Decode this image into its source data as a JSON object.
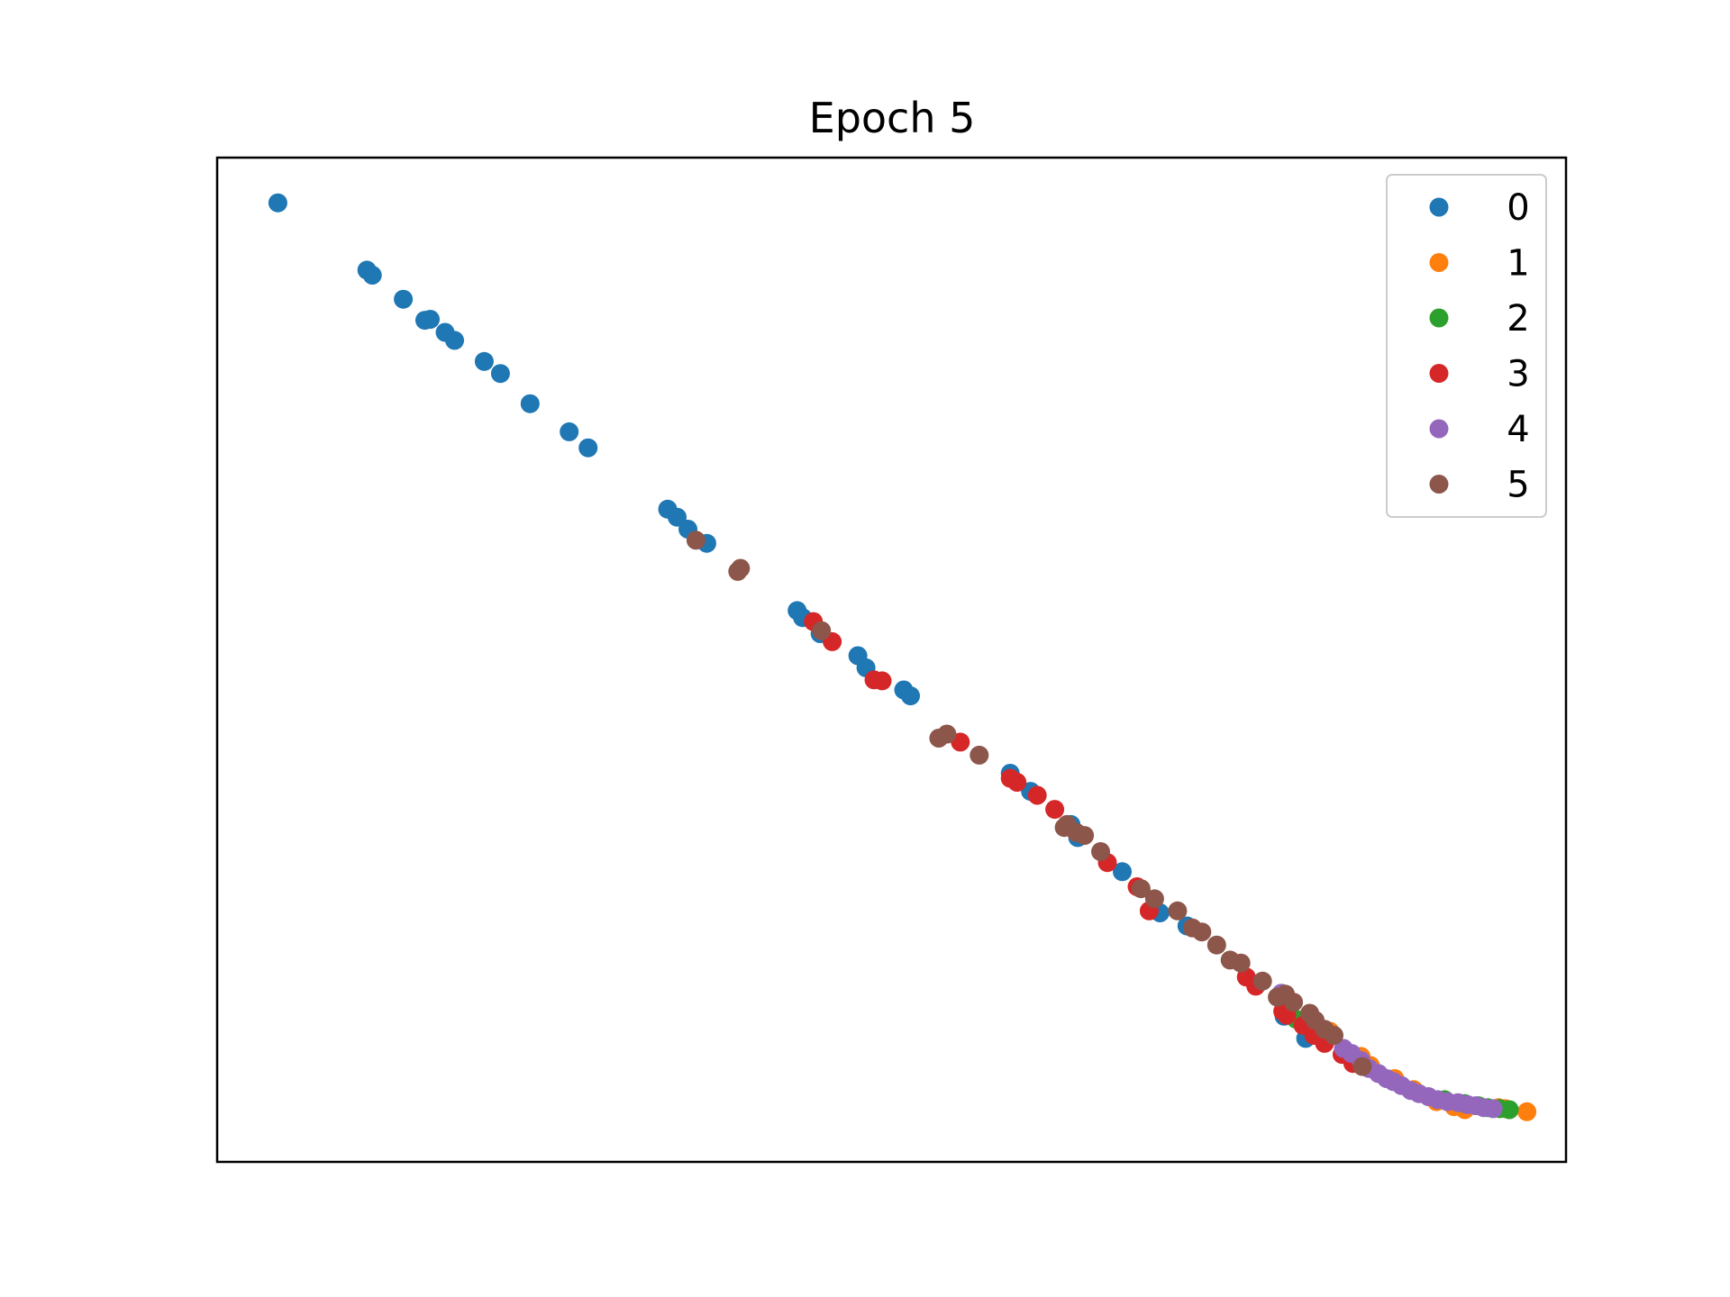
{
  "chart_data": {
    "type": "scatter",
    "title": "Epoch 5",
    "xlabel": "",
    "ylabel": "",
    "xlim": [
      0,
      100
    ],
    "ylim": [
      0,
      100
    ],
    "x_ticks_visible": false,
    "y_ticks_visible": false,
    "grid": false,
    "legend_position": "top-right",
    "series": [
      {
        "name": "0",
        "color": "#1f77b4",
        "points": [
          [
            4.5,
            95.5
          ],
          [
            11.1,
            88.8
          ],
          [
            11.5,
            88.3
          ],
          [
            13.8,
            85.9
          ],
          [
            15.4,
            83.8
          ],
          [
            15.8,
            83.9
          ],
          [
            16.9,
            82.6
          ],
          [
            17.6,
            81.8
          ],
          [
            19.8,
            79.7
          ],
          [
            21.0,
            78.5
          ],
          [
            23.2,
            75.5
          ],
          [
            26.1,
            72.7
          ],
          [
            27.5,
            71.1
          ],
          [
            33.4,
            65.0
          ],
          [
            34.1,
            64.2
          ],
          [
            34.9,
            63.0
          ],
          [
            36.3,
            61.6
          ],
          [
            43.0,
            54.9
          ],
          [
            43.4,
            54.2
          ],
          [
            44.7,
            52.6
          ],
          [
            47.5,
            50.4
          ],
          [
            48.1,
            49.2
          ],
          [
            50.9,
            47.0
          ],
          [
            51.4,
            46.4
          ],
          [
            58.8,
            38.7
          ],
          [
            60.3,
            36.9
          ],
          [
            63.3,
            33.6
          ],
          [
            63.8,
            32.3
          ],
          [
            67.1,
            28.9
          ],
          [
            69.9,
            24.8
          ],
          [
            71.9,
            23.5
          ],
          [
            79.1,
            14.5
          ],
          [
            80.7,
            12.3
          ]
        ]
      },
      {
        "name": "1",
        "color": "#ff7f0e",
        "points": [
          [
            82.5,
            13.0
          ],
          [
            84.8,
            10.5
          ],
          [
            85.5,
            9.6
          ],
          [
            87.3,
            8.3
          ],
          [
            88.7,
            7.2
          ],
          [
            90.4,
            6.0
          ],
          [
            91.7,
            5.5
          ],
          [
            92.5,
            5.2
          ],
          [
            95.0,
            5.4
          ],
          [
            95.5,
            5.3
          ],
          [
            97.1,
            5.0
          ]
        ]
      },
      {
        "name": "2",
        "color": "#2ca02c",
        "points": [
          [
            80.0,
            14.2
          ],
          [
            81.0,
            13.7
          ],
          [
            82.0,
            12.9
          ],
          [
            91.0,
            6.2
          ],
          [
            92.5,
            5.8
          ],
          [
            93.5,
            5.6
          ],
          [
            94.2,
            5.4
          ],
          [
            95.1,
            5.3
          ],
          [
            95.8,
            5.2
          ]
        ]
      },
      {
        "name": "3",
        "color": "#d62728",
        "points": [
          [
            44.2,
            53.8
          ],
          [
            45.6,
            51.8
          ],
          [
            48.7,
            48.0
          ],
          [
            49.3,
            47.9
          ],
          [
            55.1,
            41.8
          ],
          [
            58.8,
            38.2
          ],
          [
            59.3,
            37.8
          ],
          [
            60.8,
            36.5
          ],
          [
            62.1,
            35.1
          ],
          [
            66.0,
            29.8
          ],
          [
            68.2,
            27.4
          ],
          [
            69.1,
            25.0
          ],
          [
            76.3,
            18.4
          ],
          [
            77.0,
            17.5
          ],
          [
            79.0,
            15.0
          ],
          [
            79.3,
            14.6
          ],
          [
            80.5,
            13.6
          ],
          [
            81.3,
            12.6
          ],
          [
            82.1,
            11.8
          ],
          [
            83.4,
            10.7
          ],
          [
            84.2,
            9.8
          ]
        ]
      },
      {
        "name": "4",
        "color": "#9467bd",
        "points": [
          [
            78.9,
            16.8
          ],
          [
            83.5,
            11.3
          ],
          [
            84.1,
            10.8
          ],
          [
            84.8,
            10.1
          ],
          [
            85.4,
            9.3
          ],
          [
            86.1,
            8.8
          ],
          [
            86.7,
            8.3
          ],
          [
            87.2,
            8.0
          ],
          [
            87.8,
            7.6
          ],
          [
            88.5,
            7.1
          ],
          [
            89.1,
            6.8
          ],
          [
            89.8,
            6.5
          ],
          [
            90.5,
            6.2
          ],
          [
            91.2,
            6.0
          ],
          [
            92.0,
            5.9
          ],
          [
            92.7,
            5.7
          ],
          [
            93.3,
            5.6
          ],
          [
            93.9,
            5.4
          ],
          [
            94.6,
            5.3
          ]
        ]
      },
      {
        "name": "5",
        "color": "#8c564b",
        "points": [
          [
            35.5,
            61.9
          ],
          [
            38.6,
            58.8
          ],
          [
            38.8,
            59.1
          ],
          [
            44.8,
            52.9
          ],
          [
            53.5,
            42.2
          ],
          [
            54.1,
            42.6
          ],
          [
            56.5,
            40.5
          ],
          [
            62.8,
            33.3
          ],
          [
            63.0,
            33.6
          ],
          [
            63.7,
            32.8
          ],
          [
            64.3,
            32.5
          ],
          [
            65.5,
            30.9
          ],
          [
            68.5,
            27.2
          ],
          [
            69.5,
            26.2
          ],
          [
            71.2,
            25.0
          ],
          [
            72.3,
            23.3
          ],
          [
            73.0,
            22.9
          ],
          [
            74.1,
            21.6
          ],
          [
            75.1,
            20.1
          ],
          [
            75.9,
            19.8
          ],
          [
            77.5,
            18.0
          ],
          [
            78.6,
            16.4
          ],
          [
            79.2,
            16.7
          ],
          [
            79.8,
            15.9
          ],
          [
            81.0,
            14.8
          ],
          [
            81.4,
            14.1
          ],
          [
            82.1,
            13.2
          ],
          [
            82.8,
            12.6
          ],
          [
            84.9,
            9.5
          ]
        ]
      }
    ]
  }
}
